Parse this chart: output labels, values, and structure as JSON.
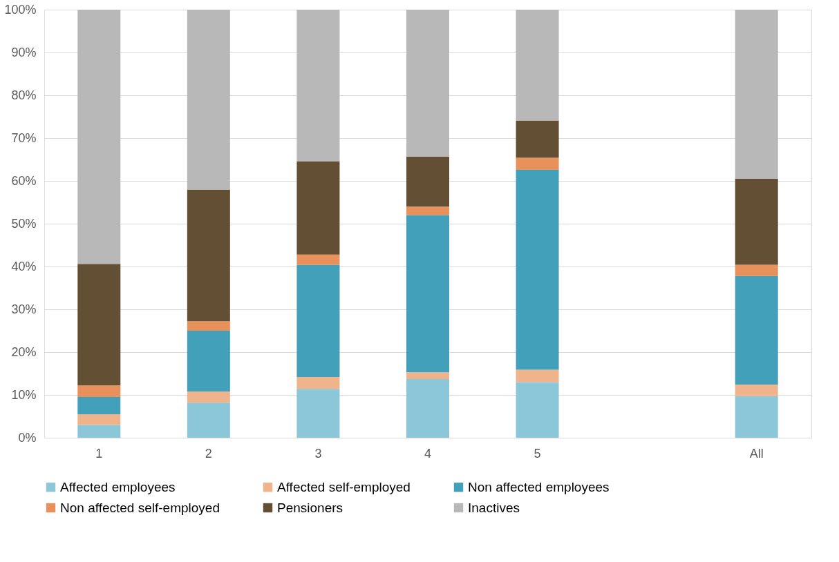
{
  "chart_data": {
    "type": "bar",
    "stacked": true,
    "categories": [
      "1",
      "2",
      "3",
      "4",
      "5",
      null,
      "All"
    ],
    "series": [
      {
        "name": "Affected employees",
        "color": "#8cc6d9",
        "values": [
          3.0,
          8.2,
          11.4,
          13.7,
          13.0,
          null,
          9.7
        ]
      },
      {
        "name": "Affected self-employed",
        "color": "#f0b48c",
        "values": [
          2.5,
          2.6,
          2.8,
          1.6,
          2.9,
          null,
          2.7
        ]
      },
      {
        "name": "Non affected employees",
        "color": "#42a0bb",
        "values": [
          4.0,
          14.2,
          26.2,
          36.7,
          46.7,
          null,
          25.4
        ]
      },
      {
        "name": "Non affected self-employed",
        "color": "#e8915a",
        "values": [
          2.7,
          2.2,
          2.4,
          2.0,
          2.8,
          null,
          2.6
        ]
      },
      {
        "name": "Pensioners",
        "color": "#634f33",
        "values": [
          28.4,
          30.8,
          21.8,
          11.7,
          8.7,
          null,
          20.1
        ]
      },
      {
        "name": "Inactives",
        "color": "#b8b8b8",
        "values": [
          59.4,
          42.0,
          35.4,
          34.3,
          25.9,
          null,
          39.5
        ]
      }
    ],
    "ylim": [
      0,
      100
    ],
    "yticks": [
      {
        "value": 0,
        "label": "0%"
      },
      {
        "value": 10,
        "label": "10%"
      },
      {
        "value": 20,
        "label": "20%"
      },
      {
        "value": 30,
        "label": "30%"
      },
      {
        "value": 40,
        "label": "40%"
      },
      {
        "value": 50,
        "label": "50%"
      },
      {
        "value": 60,
        "label": "60%"
      },
      {
        "value": 70,
        "label": "70%"
      },
      {
        "value": 80,
        "label": "80%"
      },
      {
        "value": 90,
        "label": "90%"
      },
      {
        "value": 100,
        "label": "100%"
      }
    ],
    "grid": "y",
    "legend": "bottom"
  }
}
